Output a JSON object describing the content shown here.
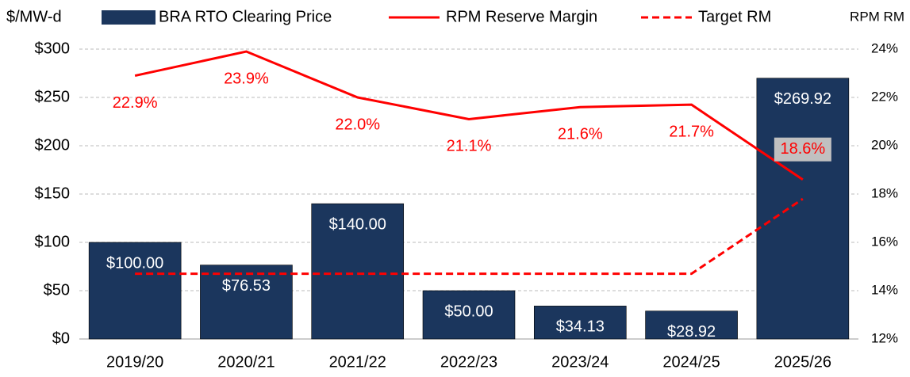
{
  "chart_data": {
    "type": "bar",
    "y_label": "$/MW-d",
    "y2_label": "RPM RM",
    "categories": [
      "2019/20",
      "2020/21",
      "2021/22",
      "2022/23",
      "2023/24",
      "2024/25",
      "2025/26"
    ],
    "series": [
      {
        "name": "BRA RTO Clearing Price",
        "type": "bar",
        "color": "#1b365d",
        "values": [
          100.0,
          76.53,
          140.0,
          50.0,
          34.13,
          28.92,
          269.92
        ],
        "value_labels": [
          "$100.00",
          "$76.53",
          "$140.00",
          "$50.00",
          "$34.13",
          "$28.92",
          "$269.92"
        ]
      },
      {
        "name": "RPM Reserve Margin",
        "type": "line",
        "axis": "y2",
        "color": "#ff0000",
        "values": [
          22.9,
          23.9,
          22.0,
          21.1,
          21.6,
          21.7,
          18.6
        ],
        "value_labels": [
          "22.9%",
          "23.9%",
          "22.0%",
          "21.1%",
          "21.6%",
          "21.7%",
          "18.6%"
        ]
      },
      {
        "name": "Target RM",
        "type": "line",
        "axis": "y2",
        "color": "#ff0000",
        "dashed": true,
        "values": [
          14.7,
          14.7,
          14.7,
          14.7,
          14.7,
          14.7,
          17.8
        ]
      }
    ],
    "ylim": [
      0,
      300
    ],
    "yticks": [
      {
        "value": 0,
        "label": "$0"
      },
      {
        "value": 50,
        "label": "$50"
      },
      {
        "value": 100,
        "label": "$100"
      },
      {
        "value": 150,
        "label": "$150"
      },
      {
        "value": 200,
        "label": "$200"
      },
      {
        "value": 250,
        "label": "$250"
      },
      {
        "value": 300,
        "label": "$300"
      }
    ],
    "y2lim": [
      12,
      24
    ],
    "y2ticks": [
      {
        "value": 12,
        "label": "12%"
      },
      {
        "value": 14,
        "label": "14%"
      },
      {
        "value": 16,
        "label": "16%"
      },
      {
        "value": 18,
        "label": "18%"
      },
      {
        "value": 20,
        "label": "20%"
      },
      {
        "value": 22,
        "label": "22%"
      },
      {
        "value": 24,
        "label": "24%"
      }
    ],
    "grid": true,
    "legend": "top"
  }
}
